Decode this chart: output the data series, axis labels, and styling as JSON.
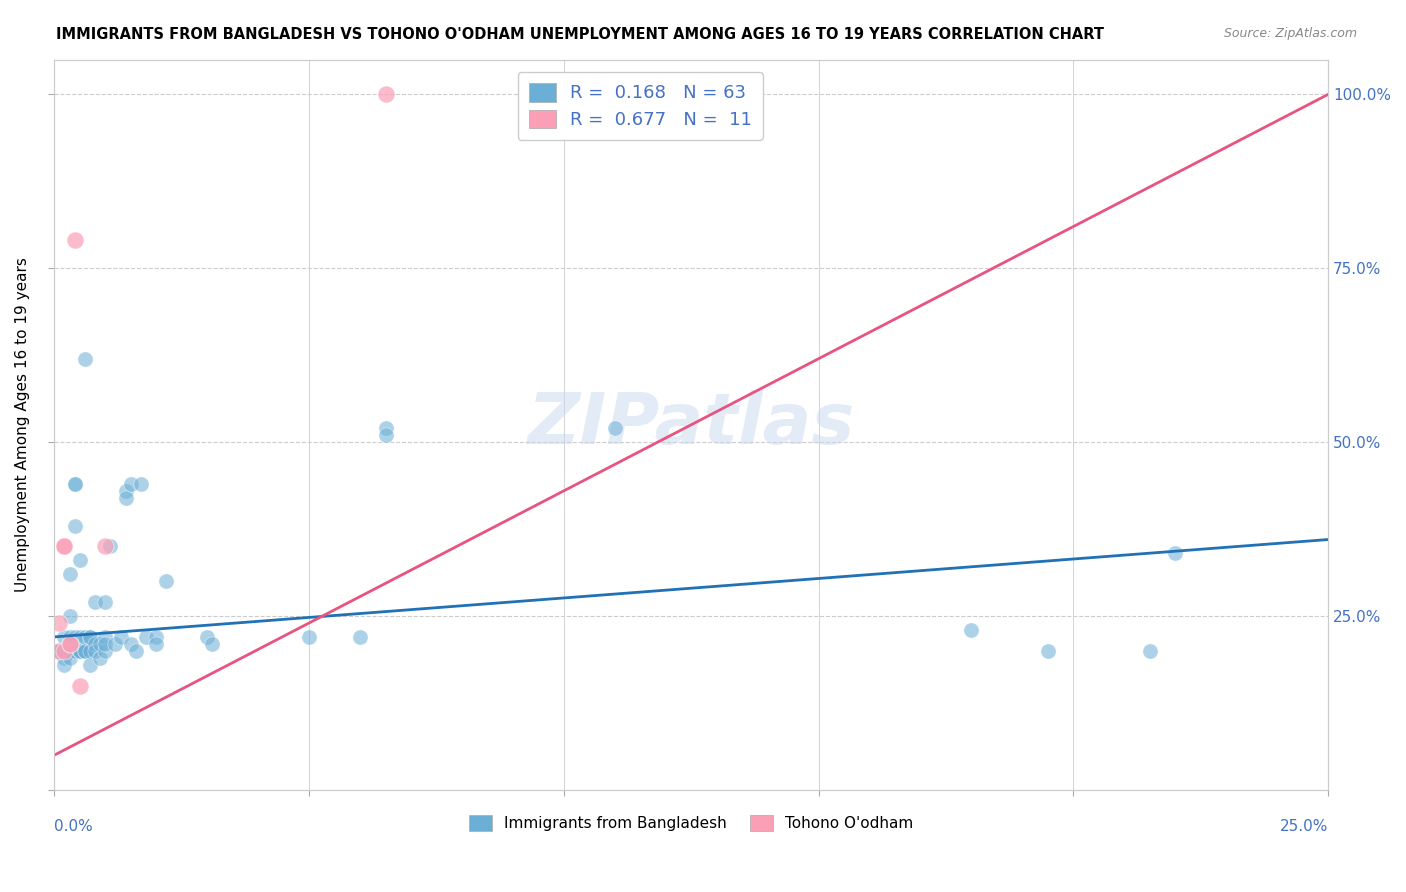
{
  "title": "IMMIGRANTS FROM BANGLADESH VS TOHONO O'ODHAM UNEMPLOYMENT AMONG AGES 16 TO 19 YEARS CORRELATION CHART",
  "source": "Source: ZipAtlas.com",
  "ylabel": "Unemployment Among Ages 16 to 19 years",
  "yticks": [
    0.0,
    0.25,
    0.5,
    0.75,
    1.0
  ],
  "ytick_labels": [
    "",
    "25.0%",
    "50.0%",
    "75.0%",
    "100.0%"
  ],
  "xlim": [
    0.0,
    0.25
  ],
  "ylim": [
    0.0,
    1.05
  ],
  "watermark": "ZIPatlas",
  "blue_color": "#6baed6",
  "pink_color": "#fa9fb5",
  "blue_line_color": "#2171b5",
  "pink_line_color": "#e75480",
  "blue_scatter": [
    [
      0.001,
      0.2
    ],
    [
      0.001,
      0.2
    ],
    [
      0.002,
      0.19
    ],
    [
      0.002,
      0.22
    ],
    [
      0.002,
      0.2
    ],
    [
      0.002,
      0.18
    ],
    [
      0.002,
      0.2
    ],
    [
      0.003,
      0.2
    ],
    [
      0.003,
      0.22
    ],
    [
      0.003,
      0.19
    ],
    [
      0.003,
      0.25
    ],
    [
      0.003,
      0.31
    ],
    [
      0.004,
      0.2
    ],
    [
      0.004,
      0.22
    ],
    [
      0.004,
      0.44
    ],
    [
      0.004,
      0.44
    ],
    [
      0.004,
      0.38
    ],
    [
      0.005,
      0.2
    ],
    [
      0.005,
      0.33
    ],
    [
      0.005,
      0.22
    ],
    [
      0.005,
      0.2
    ],
    [
      0.005,
      0.2
    ],
    [
      0.006,
      0.2
    ],
    [
      0.006,
      0.2
    ],
    [
      0.006,
      0.62
    ],
    [
      0.006,
      0.22
    ],
    [
      0.007,
      0.2
    ],
    [
      0.007,
      0.18
    ],
    [
      0.007,
      0.22
    ],
    [
      0.007,
      0.22
    ],
    [
      0.008,
      0.27
    ],
    [
      0.008,
      0.21
    ],
    [
      0.008,
      0.2
    ],
    [
      0.009,
      0.19
    ],
    [
      0.009,
      0.21
    ],
    [
      0.01,
      0.27
    ],
    [
      0.01,
      0.22
    ],
    [
      0.01,
      0.2
    ],
    [
      0.01,
      0.21
    ],
    [
      0.011,
      0.35
    ],
    [
      0.012,
      0.21
    ],
    [
      0.013,
      0.22
    ],
    [
      0.014,
      0.43
    ],
    [
      0.014,
      0.42
    ],
    [
      0.015,
      0.21
    ],
    [
      0.015,
      0.44
    ],
    [
      0.016,
      0.2
    ],
    [
      0.017,
      0.44
    ],
    [
      0.018,
      0.22
    ],
    [
      0.02,
      0.22
    ],
    [
      0.02,
      0.21
    ],
    [
      0.022,
      0.3
    ],
    [
      0.03,
      0.22
    ],
    [
      0.031,
      0.21
    ],
    [
      0.05,
      0.22
    ],
    [
      0.06,
      0.22
    ],
    [
      0.065,
      0.52
    ],
    [
      0.065,
      0.51
    ],
    [
      0.11,
      0.52
    ],
    [
      0.18,
      0.23
    ],
    [
      0.195,
      0.2
    ],
    [
      0.215,
      0.2
    ],
    [
      0.22,
      0.34
    ]
  ],
  "pink_scatter": [
    [
      0.001,
      0.2
    ],
    [
      0.001,
      0.24
    ],
    [
      0.002,
      0.2
    ],
    [
      0.002,
      0.35
    ],
    [
      0.002,
      0.35
    ],
    [
      0.003,
      0.21
    ],
    [
      0.003,
      0.21
    ],
    [
      0.004,
      0.79
    ],
    [
      0.005,
      0.15
    ],
    [
      0.01,
      0.35
    ],
    [
      0.065,
      1.0
    ]
  ],
  "blue_trendline": [
    [
      0.0,
      0.22
    ],
    [
      0.25,
      0.36
    ]
  ],
  "pink_trendline": [
    [
      0.0,
      0.05
    ],
    [
      0.25,
      1.0
    ]
  ],
  "legend1_label1": "R =  0.168   N = 63",
  "legend1_label2": "R =  0.677   N =  11",
  "legend2_label1": "Immigrants from Bangladesh",
  "legend2_label2": "Tohono O'odham"
}
